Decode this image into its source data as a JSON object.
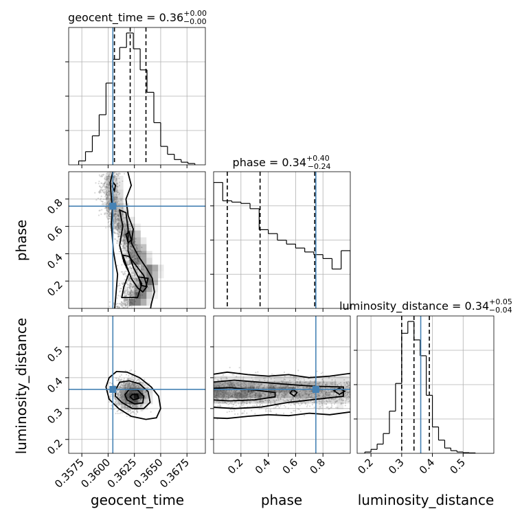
{
  "colors": {
    "truth": "#4682b4",
    "hist": "#000000",
    "grid": "#b0b0b0",
    "scatter": "#9a9a9a"
  },
  "chart_data": {
    "type": "corner",
    "parameters": [
      "geocent_time",
      "phase",
      "luminosity_distance"
    ],
    "truths": {
      "geocent_time": 0.36045,
      "phase": 0.748,
      "luminosity_distance": 0.362
    },
    "titles": {
      "geocent_time": {
        "name": "geocent_time",
        "value": "0.36",
        "plus": "+0.00",
        "minus": "−0.00"
      },
      "phase": {
        "name": "phase",
        "value": "0.34",
        "plus": "+0.40",
        "minus": "−0.24"
      },
      "luminosity_distance": {
        "name": "luminosity_distance",
        "value": "0.34",
        "plus": "+0.05",
        "minus": "−0.04"
      }
    },
    "axes": {
      "geocent_time": {
        "range": [
          0.35625,
          0.36925
        ],
        "ticks": [
          0.3575,
          0.36,
          0.3625,
          0.365,
          0.3675
        ],
        "tick_labels": [
          "0.3575",
          "0.3600",
          "0.3625",
          "0.3650",
          "0.3675"
        ],
        "label": "geocent_time"
      },
      "phase": {
        "range": [
          0.0,
          1.0
        ],
        "ticks": [
          0.2,
          0.4,
          0.6,
          0.8
        ],
        "tick_labels": [
          "0.2",
          "0.4",
          "0.6",
          "0.8"
        ],
        "label": "phase"
      },
      "luminosity_distance": {
        "range": [
          0.155,
          0.6
        ],
        "ticks": [
          0.2,
          0.3,
          0.4,
          0.5
        ],
        "tick_labels": [
          "0.2",
          "0.3",
          "0.4",
          "0.5"
        ],
        "label": "luminosity_distance"
      }
    },
    "quantiles": {
      "geocent_time": [
        0.3606,
        0.3621,
        0.3636
      ],
      "phase": [
        0.1,
        0.34,
        0.74
      ],
      "luminosity_distance": [
        0.3,
        0.34,
        0.39
      ]
    },
    "marginals": {
      "geocent_time": {
        "edges": [
          0.3572,
          0.35785,
          0.3585,
          0.35915,
          0.3598,
          0.36045,
          0.3611,
          0.36175,
          0.3624,
          0.36305,
          0.3637,
          0.36435,
          0.365,
          0.36565,
          0.3663,
          0.36695,
          0.3676,
          0.36825
        ],
        "counts": [
          0.03,
          0.1,
          0.22,
          0.38,
          0.62,
          0.8,
          0.89,
          1.0,
          0.88,
          0.72,
          0.55,
          0.32,
          0.14,
          0.08,
          0.04,
          0.02,
          0.01
        ]
      },
      "phase": {
        "edges": [
          0.0,
          0.0667,
          0.1333,
          0.2,
          0.2667,
          0.3333,
          0.4,
          0.4667,
          0.5333,
          0.6,
          0.6667,
          0.7333,
          0.8,
          0.8667,
          0.9333,
          1.0
        ],
        "counts": [
          0.96,
          0.82,
          0.81,
          0.8,
          0.76,
          0.6,
          0.57,
          0.52,
          0.49,
          0.46,
          0.43,
          0.41,
          0.38,
          0.3,
          0.44
        ]
      },
      "luminosity_distance": {
        "edges": [
          0.18,
          0.2,
          0.22,
          0.24,
          0.26,
          0.28,
          0.3,
          0.32,
          0.34,
          0.36,
          0.38,
          0.4,
          0.42,
          0.44,
          0.46,
          0.48,
          0.5,
          0.52,
          0.54
        ],
        "counts": [
          0.01,
          0.03,
          0.07,
          0.15,
          0.32,
          0.53,
          0.91,
          1.0,
          0.86,
          0.74,
          0.44,
          0.2,
          0.1,
          0.04,
          0.02,
          0.01,
          0.005,
          0.003
        ]
      }
    }
  }
}
